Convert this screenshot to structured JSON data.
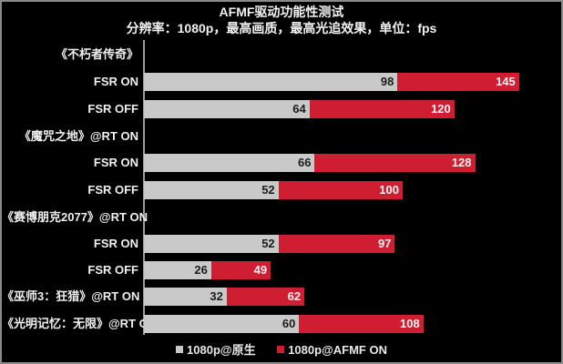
{
  "header": {
    "title": "AFMF驱动功能性测试",
    "subtitle": "分辨率：1080p，最高画质，最高光追效果，单位：fps"
  },
  "legend": {
    "native_label": "1080p@原生",
    "afmf_label": "1080p@AFMF ON",
    "native_color": "#c9c9c9",
    "afmf_color": "#cf1d31"
  },
  "rows": [
    {
      "label": "《不朽者传奇》",
      "type": "group"
    },
    {
      "label": "FSR ON",
      "native": "98",
      "afmf": "145"
    },
    {
      "label": "FSR OFF",
      "native": "64",
      "afmf": "120"
    },
    {
      "label": "《魔咒之地》@RT ON",
      "type": "group"
    },
    {
      "label": "FSR ON",
      "native": "66",
      "afmf": "128"
    },
    {
      "label": "FSR OFF",
      "native": "52",
      "afmf": "100"
    },
    {
      "label": "《赛博朋克2077》@RT ON",
      "type": "group"
    },
    {
      "label": "FSR ON",
      "native": "52",
      "afmf": "97"
    },
    {
      "label": "FSR OFF",
      "native": "26",
      "afmf": "49"
    },
    {
      "label": "《巫师3：狂猎》@RT ON",
      "native": "32",
      "afmf": "62"
    },
    {
      "label": "《光明记忆：无限》@RT ON",
      "native": "60",
      "afmf": "108"
    }
  ],
  "chart_data": {
    "type": "bar",
    "orientation": "horizontal",
    "title": "AFMF驱动功能性测试",
    "subtitle": "分辨率：1080p，最高画质，最高光追效果，单位：fps",
    "xlabel": "",
    "ylabel": "",
    "unit": "fps",
    "grid": false,
    "legend_position": "bottom",
    "categories": [
      "《不朽者传奇》 FSR ON",
      "《不朽者传奇》 FSR OFF",
      "《魔咒之地》@RT ON FSR ON",
      "《魔咒之地》@RT ON FSR OFF",
      "《赛博朋克2077》@RT ON FSR ON",
      "《赛博朋克2077》@RT ON FSR OFF",
      "《巫师3：狂猎》@RT ON",
      "《光明记忆：无限》@RT ON"
    ],
    "series": [
      {
        "name": "1080p@原生",
        "color": "#c9c9c9",
        "values": [
          98,
          64,
          66,
          52,
          52,
          26,
          32,
          60
        ]
      },
      {
        "name": "1080p@AFMF ON",
        "color": "#cf1d31",
        "values": [
          145,
          120,
          128,
          100,
          97,
          49,
          62,
          108
        ]
      }
    ],
    "xlim": [
      0,
      150
    ]
  }
}
